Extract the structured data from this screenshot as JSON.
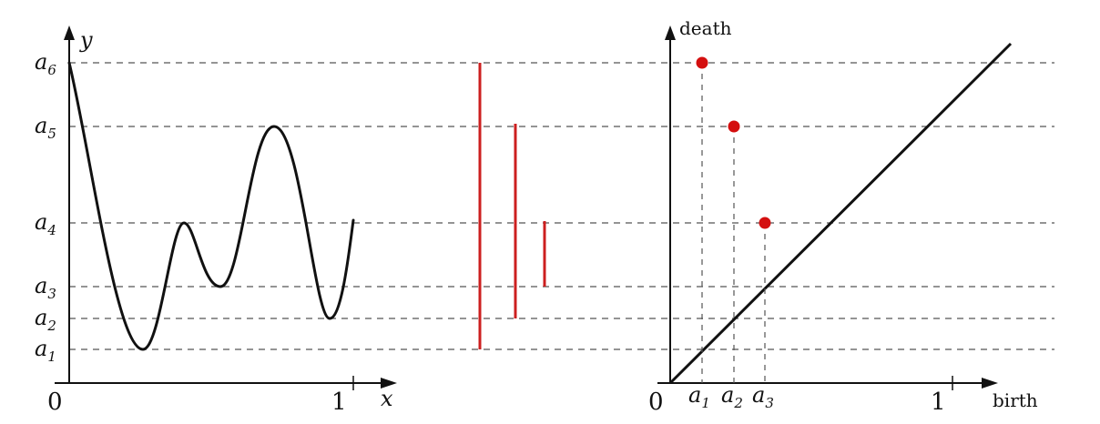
{
  "left_plot": {
    "y_axis_label": "y",
    "x_axis_label": "x",
    "origin_label": "0",
    "x_tick_label": "1",
    "y_level_labels": [
      {
        "base": "a",
        "sub": "6"
      },
      {
        "base": "a",
        "sub": "5"
      },
      {
        "base": "a",
        "sub": "4"
      },
      {
        "base": "a",
        "sub": "3"
      },
      {
        "base": "a",
        "sub": "2"
      },
      {
        "base": "a",
        "sub": "1"
      }
    ]
  },
  "right_plot": {
    "y_axis_label": "death",
    "x_axis_label": "birth",
    "origin_label": "0",
    "x_tick_label": "1",
    "x_point_labels": [
      {
        "base": "a",
        "sub": "1"
      },
      {
        "base": "a",
        "sub": "2"
      },
      {
        "base": "a",
        "sub": "3"
      }
    ]
  },
  "colors": {
    "curve": "#111111",
    "barcode": "#cc1f1f",
    "points": "#d40f0f",
    "dashed": "#555555"
  }
}
